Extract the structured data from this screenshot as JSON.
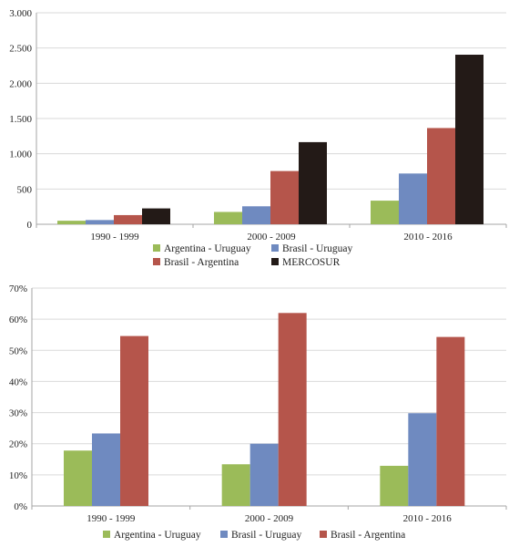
{
  "chart_data": [
    {
      "type": "bar",
      "categories": [
        "1990 - 1999",
        "2000 - 2009",
        "2010 - 2016"
      ],
      "ylim": [
        0,
        3000
      ],
      "yticks": [
        0,
        500,
        1000,
        1500,
        2000,
        2500,
        3000
      ],
      "ytick_labels": [
        "0",
        "500",
        "1.000",
        "1.500",
        "2.000",
        "2.500",
        "3.000"
      ],
      "grid": true,
      "legend_position": "bottom",
      "series": [
        {
          "name": "Argentina - Uruguay",
          "color": "#9bbb59",
          "values": [
            50,
            175,
            335
          ]
        },
        {
          "name": "Brasil - Uruguay",
          "color": "#6f8ac0",
          "values": [
            60,
            255,
            720
          ]
        },
        {
          "name": "Brasil - Argentina",
          "color": "#b5554b",
          "values": [
            130,
            755,
            1365
          ]
        },
        {
          "name": "MERCOSUR",
          "color": "#231a17",
          "values": [
            225,
            1165,
            2405
          ]
        }
      ]
    },
    {
      "type": "bar",
      "categories": [
        "1990 - 1999",
        "2000 - 2009",
        "2010 - 2016"
      ],
      "ylim": [
        0,
        70
      ],
      "yticks": [
        0,
        10,
        20,
        30,
        40,
        50,
        60,
        70
      ],
      "ytick_labels": [
        "0%",
        "10%",
        "20%",
        "30%",
        "40%",
        "50%",
        "60%",
        "70%"
      ],
      "grid": true,
      "legend_position": "bottom",
      "series": [
        {
          "name": "Argentina - Uruguay",
          "color": "#9bbb59",
          "values": [
            17.8,
            13.4,
            12.9
          ]
        },
        {
          "name": "Brasil - Uruguay",
          "color": "#6f8ac0",
          "values": [
            23.3,
            20.0,
            29.8
          ]
        },
        {
          "name": "Brasil - Argentina",
          "color": "#b5554b",
          "values": [
            54.6,
            62.0,
            54.3
          ]
        }
      ]
    }
  ]
}
